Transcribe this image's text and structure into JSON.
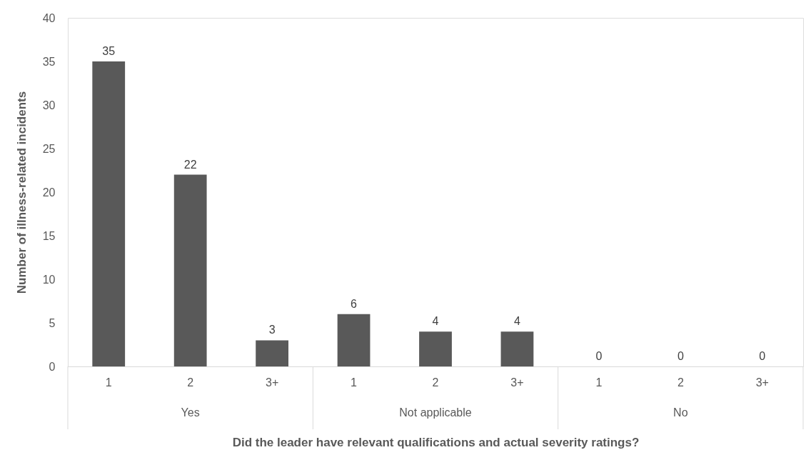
{
  "chart_data": {
    "type": "bar",
    "xlabel": "Did the leader have relevant qualifications and actual severity ratings?",
    "ylabel": "Number of illness-related incidents",
    "categories": [
      "1",
      "2",
      "3+",
      "1",
      "2",
      "3+",
      "1",
      "2",
      "3+"
    ],
    "values": [
      35,
      22,
      3,
      6,
      4,
      4,
      0,
      0,
      0
    ],
    "color": "#595959",
    "annotations": [
      "Yes",
      "Not applicable",
      "No"
    ],
    "ylim": [
      0,
      40
    ],
    "yticks": [
      0,
      5,
      10,
      15,
      20,
      25,
      30,
      35,
      40
    ],
    "grid": false,
    "data_labels": true
  }
}
